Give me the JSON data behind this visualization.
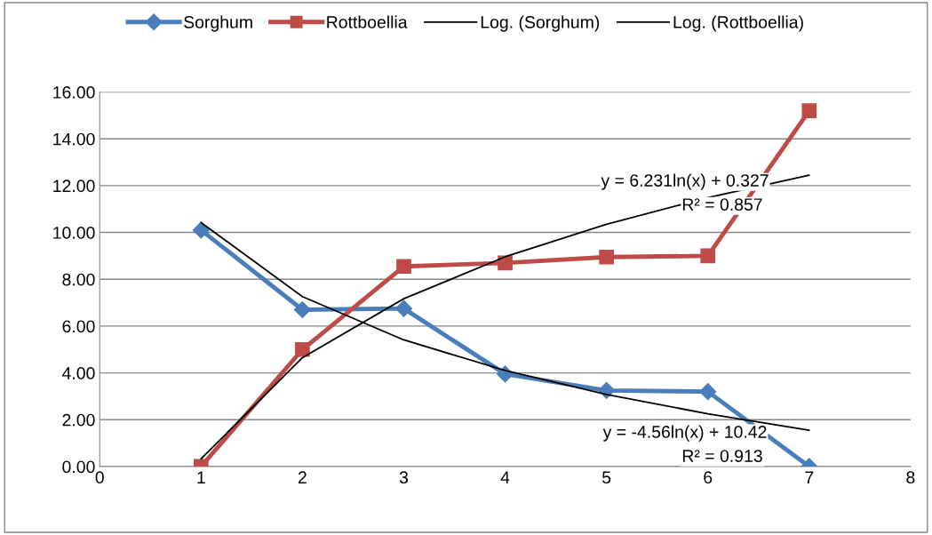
{
  "chart_data": {
    "type": "line",
    "x": [
      1,
      2,
      3,
      4,
      5,
      6,
      7
    ],
    "series": [
      {
        "name": "Sorghum",
        "color": "#4a7ebb",
        "marker": "diamond",
        "values": [
          10.1,
          6.7,
          6.75,
          3.95,
          3.25,
          3.2,
          0.0
        ]
      },
      {
        "name": "Rottboellia",
        "color": "#be4b48",
        "marker": "square",
        "values": [
          0.0,
          5.0,
          8.55,
          8.7,
          8.95,
          9.0,
          15.2
        ]
      },
      {
        "name": "Log. (Sorghum)",
        "color": "#000000",
        "marker": "none",
        "values": [
          10.42,
          7.26,
          5.41,
          4.1,
          3.08,
          2.25,
          1.55
        ]
      },
      {
        "name": "Log. (Rottboellia)",
        "color": "#000000",
        "marker": "none",
        "values": [
          0.33,
          4.65,
          7.17,
          8.96,
          10.35,
          11.49,
          12.45
        ]
      }
    ],
    "xlim": [
      0,
      8
    ],
    "xticks": [
      0,
      1,
      2,
      3,
      4,
      5,
      6,
      7,
      8
    ],
    "ylim": [
      0,
      16
    ],
    "yticks": [
      {
        "value": 0,
        "label": "0.00"
      },
      {
        "value": 2,
        "label": "2.00"
      },
      {
        "value": 4,
        "label": "4.00"
      },
      {
        "value": 6,
        "label": "6.00"
      },
      {
        "value": 8,
        "label": "8.00"
      },
      {
        "value": 10,
        "label": "10.00"
      },
      {
        "value": 12,
        "label": "12.00"
      },
      {
        "value": 14,
        "label": "14.00"
      },
      {
        "value": 16,
        "label": "16.00"
      }
    ],
    "grid": "y",
    "legend": "top",
    "line_style": "solid",
    "annotations": [
      "y = 6.231ln(x) + 0.327",
      "R² = 0.857",
      "y = -4.56ln(x) + 10.42",
      "R² = 0.913"
    ]
  }
}
